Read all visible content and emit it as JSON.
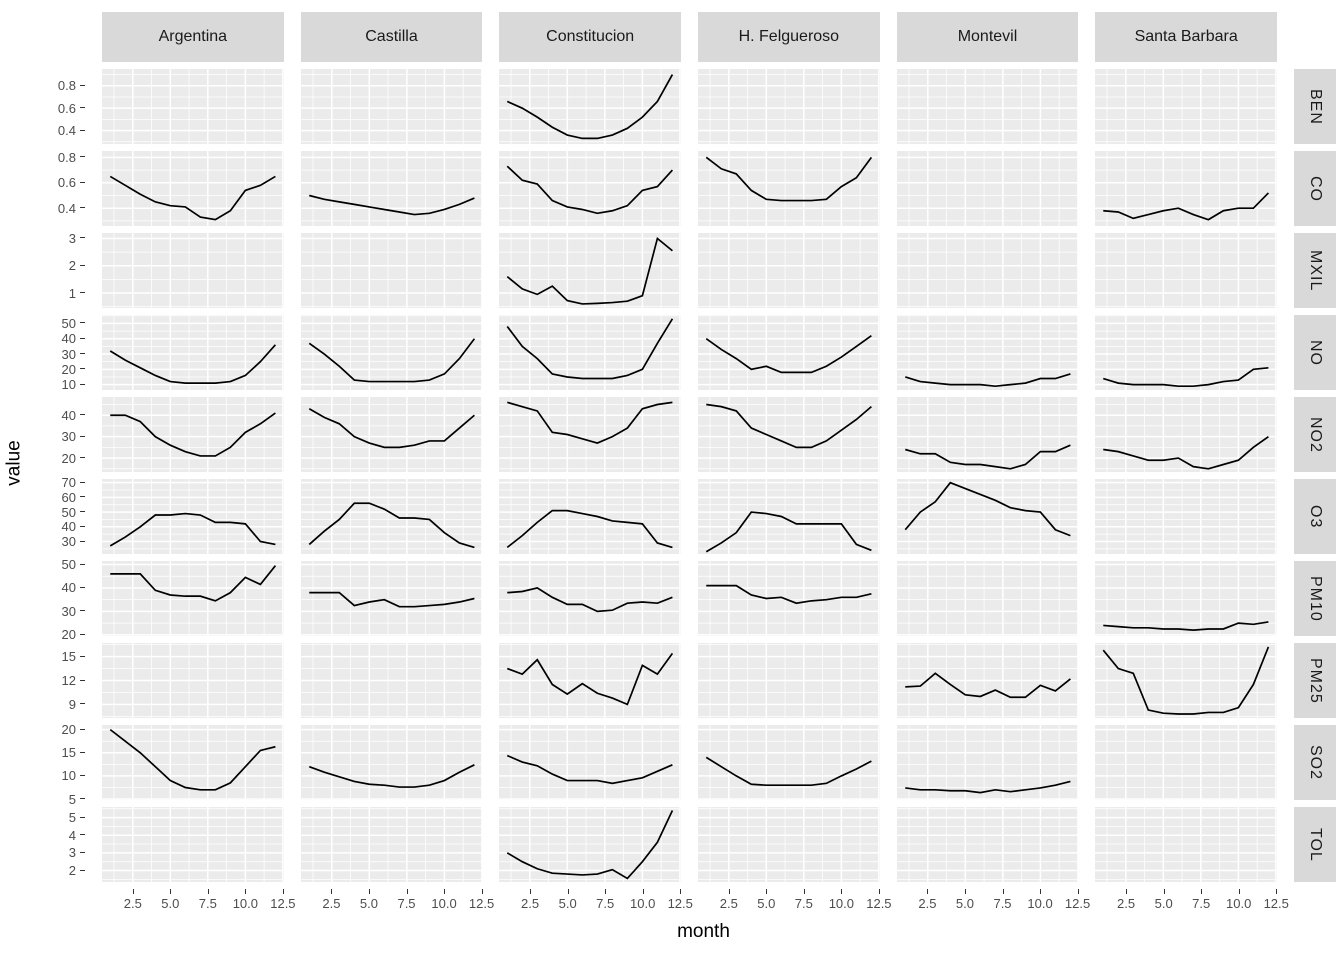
{
  "figure": {
    "xlabel": "month",
    "ylabel": "value",
    "x_tick_labels": [
      "2.5",
      "5.0",
      "7.5",
      "10.0",
      "12.5"
    ]
  },
  "colors": {
    "panel_bg": "#ebebeb",
    "strip_bg": "#d9d9d9",
    "grid": "#ffffff",
    "line": "#000000",
    "tick_text": "#4d4d4d"
  },
  "chart_data": {
    "type": "line",
    "title": "",
    "xlabel": "month",
    "ylabel": "value",
    "facet_columns": [
      "Argentina",
      "Castilla",
      "Constitucion",
      "H. Felgueroso",
      "Montevil",
      "Santa Barbara"
    ],
    "x": [
      1,
      2,
      3,
      4,
      5,
      6,
      7,
      8,
      9,
      10,
      11,
      12
    ],
    "xlim": [
      0.45,
      12.55
    ],
    "x_major": [
      2.5,
      5,
      7.5,
      10,
      12.5
    ],
    "x_minor": [
      1.25,
      3.75,
      6.25,
      8.75,
      11.25
    ],
    "rows": [
      {
        "label": "BEN",
        "ticks": [
          0.4,
          0.6,
          0.8
        ],
        "tick_labels": [
          "0.4",
          "0.6",
          "0.8"
        ],
        "ylim": [
          0.28,
          0.95
        ],
        "series": {
          "Constitucion": [
            0.66,
            0.6,
            0.52,
            0.43,
            0.36,
            0.33,
            0.33,
            0.36,
            0.42,
            0.52,
            0.66,
            0.9
          ]
        }
      },
      {
        "label": "CO",
        "ticks": [
          0.4,
          0.6,
          0.8
        ],
        "tick_labels": [
          "0.4",
          "0.6",
          "0.8"
        ],
        "ylim": [
          0.26,
          0.85
        ],
        "series": {
          "Argentina": [
            0.65,
            0.58,
            0.51,
            0.45,
            0.42,
            0.41,
            0.33,
            0.31,
            0.38,
            0.54,
            0.58,
            0.65
          ],
          "Castilla": [
            0.5,
            0.47,
            0.45,
            0.43,
            0.41,
            0.39,
            0.37,
            0.35,
            0.36,
            0.39,
            0.43,
            0.48
          ],
          "Constitucion": [
            0.73,
            0.62,
            0.59,
            0.46,
            0.41,
            0.39,
            0.36,
            0.38,
            0.42,
            0.54,
            0.57,
            0.7
          ],
          "H. Felgueroso": [
            0.8,
            0.71,
            0.67,
            0.54,
            0.47,
            0.46,
            0.46,
            0.46,
            0.47,
            0.57,
            0.64,
            0.8
          ],
          "Santa Barbara": [
            0.38,
            0.37,
            0.32,
            0.35,
            0.38,
            0.4,
            0.35,
            0.31,
            0.38,
            0.4,
            0.4,
            0.52
          ]
        }
      },
      {
        "label": "MXIL",
        "ticks": [
          1,
          2,
          3
        ],
        "tick_labels": [
          "1",
          "2",
          "3"
        ],
        "ylim": [
          0.45,
          3.2
        ],
        "series": {
          "Constitucion": [
            1.6,
            1.15,
            0.95,
            1.25,
            0.72,
            0.6,
            0.62,
            0.65,
            0.7,
            0.9,
            3.0,
            2.55
          ]
        }
      },
      {
        "label": "NO",
        "ticks": [
          10,
          20,
          30,
          40,
          50
        ],
        "tick_labels": [
          "10",
          "20",
          "30",
          "40",
          "50"
        ],
        "ylim": [
          6.5,
          55.5
        ],
        "series": {
          "Argentina": [
            32,
            26,
            21,
            16,
            12,
            11,
            11,
            11,
            12,
            16,
            25,
            36
          ],
          "Castilla": [
            37,
            30,
            22,
            13,
            12,
            12,
            12,
            12,
            13,
            17,
            27,
            40
          ],
          "Constitucion": [
            48,
            35,
            27,
            17,
            15,
            14,
            14,
            14,
            16,
            20,
            37,
            53
          ],
          "H. Felgueroso": [
            40,
            33,
            27,
            20,
            22,
            18,
            18,
            18,
            22,
            28,
            35,
            42
          ],
          "Montevil": [
            15,
            12,
            11,
            10,
            10,
            10,
            9,
            10,
            11,
            14,
            14,
            17
          ],
          "Santa Barbara": [
            14,
            11,
            10,
            10,
            10,
            9,
            9,
            10,
            12,
            13,
            20,
            21
          ]
        }
      },
      {
        "label": "NO2",
        "ticks": [
          20,
          30,
          40
        ],
        "tick_labels": [
          "20",
          "30",
          "40"
        ],
        "ylim": [
          13.5,
          48.5
        ],
        "series": {
          "Argentina": [
            40,
            40,
            37,
            30,
            26,
            23,
            21,
            21,
            25,
            32,
            36,
            41
          ],
          "Castilla": [
            43,
            39,
            36,
            30,
            27,
            25,
            25,
            26,
            28,
            28,
            34,
            40
          ],
          "Constitucion": [
            46,
            44,
            42,
            32,
            31,
            29,
            27,
            30,
            34,
            43,
            45,
            46
          ],
          "H. Felgueroso": [
            45,
            44,
            42,
            34,
            31,
            28,
            25,
            25,
            28,
            33,
            38,
            44
          ],
          "Montevil": [
            24,
            22,
            22,
            18,
            17,
            17,
            16,
            15,
            17,
            23,
            23,
            26
          ],
          "Santa Barbara": [
            24,
            23,
            21,
            19,
            19,
            20,
            16,
            15,
            17,
            19,
            25,
            30
          ]
        }
      },
      {
        "label": "O3",
        "ticks": [
          30,
          40,
          50,
          60,
          70
        ],
        "tick_labels": [
          "30",
          "40",
          "50",
          "60",
          "70"
        ],
        "ylim": [
          21.5,
          72.5
        ],
        "series": {
          "Argentina": [
            27,
            33,
            40,
            48,
            48,
            49,
            48,
            43,
            43,
            42,
            30,
            28
          ],
          "Castilla": [
            28,
            37,
            45,
            56,
            56,
            52,
            46,
            46,
            45,
            36,
            29,
            26
          ],
          "Constitucion": [
            26,
            34,
            43,
            51,
            51,
            49,
            47,
            44,
            43,
            42,
            29,
            26
          ],
          "H. Felgueroso": [
            23,
            29,
            36,
            50,
            49,
            47,
            42,
            42,
            42,
            42,
            28,
            24
          ],
          "Montevil": [
            38,
            50,
            57,
            70,
            66,
            62,
            58,
            53,
            51,
            50,
            38,
            34
          ]
        }
      },
      {
        "label": "PM10",
        "ticks": [
          20,
          30,
          40,
          50
        ],
        "tick_labels": [
          "20",
          "30",
          "40",
          "50"
        ],
        "ylim": [
          19.5,
          51.5
        ],
        "series": {
          "Argentina": [
            46,
            46,
            46,
            39,
            37,
            36.5,
            36.5,
            34.5,
            38,
            44.5,
            41.5,
            49.5
          ],
          "Castilla": [
            38,
            38,
            38,
            32.5,
            34,
            35,
            32,
            32,
            32.5,
            33,
            34,
            35.5
          ],
          "Constitucion": [
            38,
            38.5,
            40,
            36,
            33,
            33,
            30,
            30.5,
            33.5,
            34,
            33.5,
            36
          ],
          "H. Felgueroso": [
            41,
            41,
            41,
            37,
            35.5,
            36,
            33.5,
            34.5,
            35,
            36,
            36,
            37.5
          ],
          "Santa Barbara": [
            24,
            23.5,
            23,
            23,
            22.5,
            22.5,
            22,
            22.5,
            22.5,
            25,
            24.5,
            25.5
          ]
        }
      },
      {
        "label": "PM25",
        "ticks": [
          9,
          12,
          15
        ],
        "tick_labels": [
          "9",
          "12",
          "15"
        ],
        "ylim": [
          7.3,
          16.7
        ],
        "series": {
          "Constitucion": [
            13.5,
            12.8,
            14.6,
            11.5,
            10.3,
            11.6,
            10.4,
            9.8,
            9.0,
            13.9,
            12.8,
            15.4
          ],
          "Montevil": [
            11.2,
            11.3,
            12.9,
            11.5,
            10.2,
            10.0,
            10.8,
            9.9,
            9.9,
            11.4,
            10.7,
            12.2
          ],
          "Santa Barbara": [
            15.8,
            13.5,
            12.9,
            8.3,
            7.9,
            7.8,
            7.8,
            8.0,
            8.0,
            8.6,
            11.5,
            16.2
          ]
        }
      },
      {
        "label": "SO2",
        "ticks": [
          5,
          10,
          15,
          20
        ],
        "tick_labels": [
          "5",
          "10",
          "15",
          "20"
        ],
        "ylim": [
          4.8,
          21
        ],
        "series": {
          "Argentina": [
            20,
            17.5,
            15,
            12,
            9,
            7.5,
            7,
            7,
            8.5,
            12,
            15.5,
            16.3
          ],
          "Castilla": [
            12,
            10.8,
            9.8,
            8.8,
            8.2,
            8,
            7.6,
            7.6,
            8,
            9,
            10.8,
            12.4
          ],
          "Constitucion": [
            14.4,
            13,
            12.2,
            10.4,
            9,
            9,
            9,
            8.4,
            9,
            9.6,
            11,
            12.4
          ],
          "H. Felgueroso": [
            14,
            12,
            10,
            8.2,
            8,
            8,
            8,
            8,
            8.4,
            10,
            11.5,
            13.2
          ],
          "Montevil": [
            7.4,
            7,
            7,
            6.8,
            6.8,
            6.4,
            7,
            6.6,
            7,
            7.4,
            8,
            8.8
          ]
        }
      },
      {
        "label": "TOL",
        "ticks": [
          2,
          3,
          4,
          5
        ],
        "tick_labels": [
          "2",
          "3",
          "4",
          "5"
        ],
        "ylim": [
          1.35,
          5.6
        ],
        "series": {
          "Constitucion": [
            3.0,
            2.5,
            2.1,
            1.85,
            1.8,
            1.75,
            1.8,
            2.05,
            1.55,
            2.5,
            3.6,
            5.4
          ]
        }
      }
    ]
  }
}
